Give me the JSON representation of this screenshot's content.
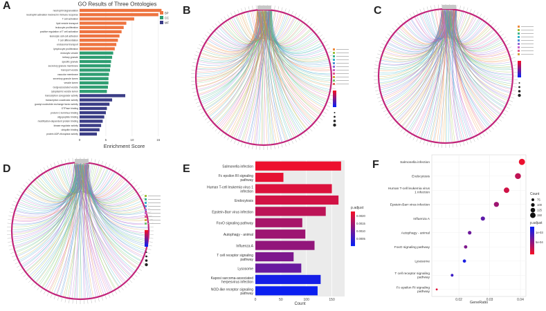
{
  "panel_labels": {
    "a": "A",
    "b": "B",
    "c": "C",
    "d": "D",
    "e": "E",
    "f": "F"
  },
  "colors": {
    "bp": "#ee7440",
    "cc": "#2f9e72",
    "mf": "#3b3d86",
    "circle": "#c2247a",
    "low": "#0b1ff0",
    "high": "#f0102a"
  },
  "chart_data": [
    {
      "panel": "A",
      "type": "bar",
      "orientation": "horizontal",
      "title": "GO Results of Three Ontologies",
      "xlabel": "Enrichment Score",
      "xlim": [
        0,
        17
      ],
      "xticks": [
        0,
        5,
        10,
        15
      ],
      "legend": {
        "position": "top-right",
        "entries": [
          "BP",
          "CC",
          "MF"
        ]
      },
      "categories": [
        "neutrophil degranulation",
        "neutrophil activation involved in immune response",
        "T cell activation",
        "lipid vesicle transport",
        "leukocyte proliferation",
        "positive regulation of T cell activation",
        "leukocyte cell-cell adhesion",
        "T cell differentiation",
        "endosomal transport",
        "lymphocyte proliferation",
        "endocytic vesicle",
        "tertiary granule",
        "specific granule",
        "secretory granule membrane",
        "transport vesicle",
        "vacuolar membrane",
        "secretory granule lumen",
        "vesicle lumen",
        "Golgi-associated vesicle",
        "cytoplasmic vesicle lumen",
        "transcription coregulator activity",
        "transcription coactivator activity",
        "guanyl-nucleotide exchange factor activity",
        "GTPase binding",
        "protein C-terminus binding",
        "oligopeptide binding",
        "modification-dependent protein binding",
        "kinase regulator activity",
        "ubiquitin binding",
        "protein ADP-ribosylase activity"
      ],
      "groups": [
        "BP",
        "BP",
        "BP",
        "BP",
        "BP",
        "BP",
        "BP",
        "BP",
        "BP",
        "BP",
        "CC",
        "CC",
        "CC",
        "CC",
        "CC",
        "CC",
        "CC",
        "CC",
        "CC",
        "CC",
        "MF",
        "MF",
        "MF",
        "MF",
        "MF",
        "MF",
        "MF",
        "MF",
        "MF",
        "MF"
      ],
      "values": [
        15.6,
        15.0,
        10.4,
        8.9,
        8.4,
        8.0,
        7.6,
        7.3,
        7.0,
        6.7,
        6.4,
        6.2,
        6.0,
        5.9,
        5.8,
        5.6,
        5.5,
        5.5,
        5.4,
        5.2,
        8.7,
        6.2,
        5.7,
        5.2,
        5.0,
        4.7,
        4.4,
        4.1,
        3.8,
        3.3
      ]
    },
    {
      "panel": "E",
      "type": "bar",
      "orientation": "horizontal",
      "xlabel": "Count",
      "xlim": [
        0,
        175
      ],
      "xticks": [
        0,
        50,
        100,
        150
      ],
      "legend": {
        "position": "right",
        "title": "p.adjust",
        "ticks": [
          "0.0020",
          "0.0015",
          "0.0010",
          "0.0005"
        ]
      },
      "categories": [
        "Salmonella infection",
        "Fc epsilon RI signaling pathway",
        "Human T-cell leukemia virus 1 infection",
        "Endocytosis",
        "Epstein-Barr virus infection",
        "FoxO signaling pathway",
        "Autophagy - animal",
        "Influenza A",
        "T cell receptor signaling pathway",
        "Lysosome",
        "Kaposi sarcoma-associated herpesvirus infection",
        "NOD-like receptor signaling pathway"
      ],
      "values": [
        168,
        55,
        150,
        163,
        138,
        92,
        98,
        116,
        75,
        90,
        128,
        122
      ],
      "p_adjust": [
        3e-05,
        0.0001,
        0.0002,
        0.0003,
        0.0005,
        0.0007,
        0.0008,
        0.0009,
        0.0011,
        0.0013,
        0.0021,
        0.0022
      ]
    },
    {
      "panel": "F",
      "type": "scatter",
      "xlabel": "GeneRatio",
      "xlim": [
        0.0112,
        0.0418
      ],
      "xticks": [
        0.02,
        0.03,
        0.04
      ],
      "xtick_labels": [
        "0.02",
        "0.03",
        "0.04"
      ],
      "legend": {
        "position": "right",
        "size_title": "Count",
        "size_values": [
          "75",
          "100",
          "125",
          "150"
        ],
        "color_title": "p.adjust",
        "color_ticks": [
          "1e-03",
          "5e-04"
        ]
      },
      "categories": [
        "Salmonella infection",
        "Endocytosis",
        "Human T-cell leukemia virus 1 infection",
        "Epstein-Barr virus infection",
        "Influenza A",
        "Autophagy - animal",
        "FoxO signaling pathway",
        "Lysosome",
        "T cell receptor signaling pathway",
        "Fc epsilon RI signaling pathway"
      ],
      "x": [
        0.0405,
        0.0392,
        0.0355,
        0.0322,
        0.0278,
        0.0235,
        0.0222,
        0.0218,
        0.0178,
        0.0128
      ],
      "count": [
        168,
        163,
        150,
        138,
        116,
        98,
        92,
        90,
        75,
        55
      ],
      "p_adjust": [
        3e-05,
        0.0003,
        0.0002,
        0.0005,
        0.0009,
        0.0008,
        0.0007,
        0.0013,
        0.0011,
        0.0001
      ]
    }
  ]
}
